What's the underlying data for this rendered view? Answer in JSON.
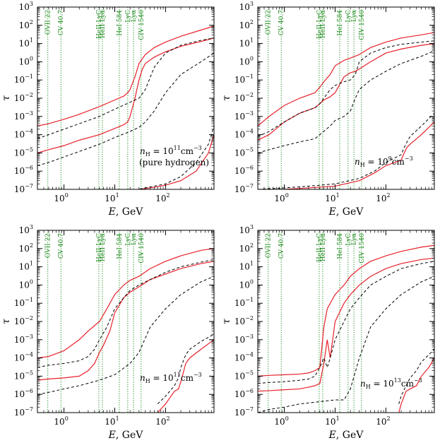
{
  "chart_data": [
    {
      "type": "line",
      "panel": "top-left",
      "xlabel_parts": [
        "E",
        ", GeV"
      ],
      "ylabel": "τ",
      "xscale": "log",
      "yscale": "log",
      "xlim": [
        0.3,
        900
      ],
      "ylim": [
        1e-07,
        1000
      ],
      "annotation_lines": [
        "nH = 10^11 cm^-3",
        "(pure hydrogen)"
      ],
      "annotation_parts": {
        "n": "n",
        "sub": "H",
        "eq": " = 10",
        "exp": "11",
        "unit": "cm",
        "unitexp": "−3",
        "line2": "(pure hydrogen)"
      },
      "series": [
        {
          "style": "solid-red",
          "x": [
            0.3,
            0.5,
            1,
            2,
            5,
            10,
            15,
            18,
            20,
            25,
            30,
            40,
            60,
            100,
            200,
            500,
            900
          ],
          "y": [
            0.0003,
            0.0004,
            0.0007,
            0.0013,
            0.0035,
            0.008,
            0.013,
            0.02,
            0.03,
            0.15,
            0.8,
            2.5,
            6,
            12,
            25,
            55,
            90
          ]
        },
        {
          "style": "solid-red",
          "x": [
            0.3,
            0.5,
            1,
            2,
            5,
            10,
            15,
            18,
            20,
            25,
            30,
            35,
            40,
            60,
            100,
            200,
            500,
            900
          ],
          "y": [
            1e-05,
            1.5e-05,
            2.5e-05,
            5e-05,
            0.0001,
            0.00022,
            0.00035,
            0.0005,
            0.001,
            0.01,
            0.1,
            0.4,
            0.8,
            1.8,
            3.5,
            7,
            13,
            20
          ]
        },
        {
          "style": "dashed-black",
          "x": [
            0.3,
            0.5,
            1,
            2,
            5,
            10,
            20,
            30,
            40,
            60,
            100,
            200,
            500,
            900
          ],
          "y": [
            6e-05,
            0.0001,
            0.0002,
            0.0004,
            0.001,
            0.0025,
            0.006,
            0.01,
            0.03,
            0.5,
            3,
            8,
            15,
            20
          ]
        },
        {
          "style": "dashed-black",
          "x": [
            0.3,
            0.5,
            1,
            2,
            5,
            10,
            20,
            30,
            40,
            60,
            100,
            200,
            500,
            900
          ],
          "y": [
            2e-06,
            3e-06,
            6e-06,
            1.2e-05,
            3e-05,
            7e-05,
            0.00015,
            0.00025,
            0.0005,
            0.002,
            0.02,
            0.2,
            1,
            3
          ]
        },
        {
          "style": "solid-red",
          "x": [
            15,
            30,
            60,
            100,
            200,
            400,
            700,
            900
          ],
          "y": [
            8e-08,
            1e-07,
            1.3e-07,
            1.7e-07,
            3e-07,
            1e-06,
            1e-05,
            0.0001
          ]
        },
        {
          "style": "dashed-black",
          "x": [
            20,
            40,
            100,
            200,
            400,
            700,
            900
          ],
          "y": [
            8e-08,
            1.2e-07,
            2e-07,
            5e-07,
            3e-06,
            3e-05,
            0.0003
          ]
        }
      ]
    },
    {
      "type": "line",
      "panel": "top-right",
      "xlabel_parts": [
        "E",
        ", GeV"
      ],
      "ylabel": "τ",
      "xscale": "log",
      "yscale": "log",
      "xlim": [
        0.3,
        900
      ],
      "ylim": [
        1e-07,
        1000
      ],
      "annotation_parts": {
        "n": "n",
        "sub": "H",
        "eq": " = 10",
        "exp": "9",
        "unit": "cm",
        "unitexp": "−3",
        "line2": ""
      },
      "series": [
        {
          "style": "solid-red",
          "x": [
            0.3,
            0.5,
            1,
            2,
            4,
            5,
            6,
            8,
            10,
            15,
            20,
            30,
            50,
            100,
            200,
            500,
            900
          ],
          "y": [
            0.0003,
            0.001,
            0.004,
            0.01,
            0.02,
            0.04,
            0.08,
            0.2,
            0.6,
            1.2,
            1.6,
            2.5,
            6,
            12,
            20,
            30,
            40
          ]
        },
        {
          "style": "solid-red",
          "x": [
            0.3,
            0.5,
            1,
            2,
            4,
            5,
            6,
            8,
            10,
            12,
            15,
            20,
            25,
            30,
            50,
            100,
            200,
            500,
            900
          ],
          "y": [
            5e-05,
            0.0001,
            0.0005,
            0.0015,
            0.003,
            0.005,
            0.008,
            0.012,
            0.02,
            0.05,
            0.15,
            0.25,
            0.3,
            0.4,
            1,
            3,
            5,
            8,
            10
          ]
        },
        {
          "style": "dashed-black",
          "x": [
            0.3,
            0.5,
            1,
            2,
            4,
            5,
            6,
            8,
            10,
            15,
            20,
            25,
            30,
            50,
            100,
            200,
            500,
            900
          ],
          "y": [
            8e-05,
            0.00015,
            0.0005,
            0.0015,
            0.003,
            0.005,
            0.01,
            0.03,
            0.05,
            0.08,
            0.1,
            0.2,
            1,
            3,
            6,
            9,
            12,
            14
          ]
        },
        {
          "style": "dashed-black",
          "x": [
            0.3,
            0.5,
            1,
            2,
            4,
            5,
            8,
            10,
            15,
            20,
            25,
            30,
            50,
            100,
            200,
            500,
            900
          ],
          "y": [
            1e-05,
            1.5e-05,
            2.5e-05,
            4e-05,
            6e-05,
            0.0001,
            0.0003,
            0.0006,
            0.001,
            0.002,
            0.01,
            0.03,
            0.1,
            0.3,
            0.8,
            2,
            4
          ]
        },
        {
          "style": "solid-red",
          "x": [
            0.3,
            1,
            3,
            10,
            30,
            60,
            100,
            200,
            230,
            260,
            300,
            500,
            900
          ],
          "y": [
            9e-08,
            1e-07,
            1.2e-07,
            1.5e-07,
            3e-07,
            8e-07,
            2e-06,
            4e-06,
            1e-05,
            2e-05,
            3e-05,
            0.0001,
            0.0005
          ]
        },
        {
          "style": "dashed-black",
          "x": [
            0.3,
            1,
            3,
            10,
            30,
            60,
            100,
            200,
            230,
            260,
            300,
            500,
            900
          ],
          "y": [
            1e-07,
            1.2e-07,
            1.5e-07,
            2e-07,
            4e-07,
            1e-06,
            3e-06,
            8e-06,
            2e-05,
            4e-05,
            8e-05,
            0.0003,
            0.0015
          ]
        }
      ]
    },
    {
      "type": "line",
      "panel": "bottom-left",
      "xlabel_parts": [
        "E",
        ", GeV"
      ],
      "ylabel": "τ",
      "xscale": "log",
      "yscale": "log",
      "xlim": [
        0.3,
        900
      ],
      "ylim": [
        1e-07,
        1000
      ],
      "annotation_parts": {
        "n": "n",
        "sub": "H",
        "eq": " = 10",
        "exp": "11",
        "unit": "cm",
        "unitexp": "−3",
        "line2": ""
      },
      "series": [
        {
          "style": "solid-red",
          "x": [
            0.3,
            0.5,
            1,
            2,
            3,
            5,
            7,
            10,
            15,
            20,
            30,
            50,
            100,
            200,
            500,
            900
          ],
          "y": [
            0.0001,
            0.00012,
            0.00025,
            0.001,
            0.003,
            0.01,
            0.05,
            0.3,
            1,
            1.8,
            3,
            8,
            20,
            40,
            80,
            100
          ]
        },
        {
          "style": "solid-red",
          "x": [
            0.3,
            0.5,
            1,
            2,
            3,
            4,
            5,
            6,
            8,
            10,
            15,
            20,
            30,
            50,
            100,
            200,
            500,
            900
          ],
          "y": [
            6e-06,
            7e-06,
            8e-06,
            1e-05,
            2e-05,
            5e-05,
            0.0002,
            0.0005,
            0.003,
            0.03,
            0.2,
            0.4,
            0.8,
            2,
            4,
            8,
            15,
            20
          ]
        },
        {
          "style": "dashed-black",
          "x": [
            0.3,
            0.5,
            1,
            2,
            3,
            4,
            5,
            7,
            10,
            15,
            20,
            30,
            50,
            100,
            200,
            500,
            900
          ],
          "y": [
            3e-05,
            4e-05,
            5e-05,
            7e-05,
            0.00012,
            0.0003,
            0.001,
            0.005,
            0.05,
            0.2,
            0.5,
            1,
            2,
            5,
            10,
            18,
            25
          ]
        },
        {
          "style": "dashed-black",
          "x": [
            0.3,
            0.5,
            1,
            2,
            5,
            10,
            20,
            30,
            50,
            100,
            200,
            500,
            900
          ],
          "y": [
            1e-06,
            1.3e-06,
            2e-06,
            3e-06,
            6e-06,
            1.2e-05,
            5e-05,
            0.0002,
            0.005,
            0.05,
            0.3,
            1.5,
            3
          ]
        },
        {
          "style": "solid-red",
          "x": [
            70,
            100,
            150,
            180,
            200,
            250,
            300,
            500,
            900
          ],
          "y": [
            1e-07,
            3e-07,
            1.5e-06,
            2e-06,
            5e-06,
            5e-05,
            0.0001,
            0.0003,
            0.001
          ]
        },
        {
          "style": "dashed-black",
          "x": [
            70,
            100,
            150,
            180,
            200,
            250,
            300,
            500,
            900
          ],
          "y": [
            3e-07,
            8e-07,
            3e-06,
            8e-06,
            3e-05,
            0.00015,
            0.0003,
            0.0008,
            0.002
          ]
        }
      ]
    },
    {
      "type": "line",
      "panel": "bottom-right",
      "xlabel_parts": [
        "E",
        ", GeV"
      ],
      "ylabel": "τ",
      "xscale": "log",
      "yscale": "log",
      "xlim": [
        0.3,
        900
      ],
      "ylim": [
        1e-07,
        1000
      ],
      "annotation_parts": {
        "n": "n",
        "sub": "H",
        "eq": " = 10",
        "exp": "13",
        "unit": "cm",
        "unitexp": "−3",
        "line2": ""
      },
      "series": [
        {
          "style": "solid-red",
          "x": [
            0.3,
            0.5,
            1,
            2,
            3,
            4,
            5,
            6,
            7,
            10,
            15,
            20,
            30,
            50,
            100,
            200,
            500,
            900
          ],
          "y": [
            1e-05,
            1.1e-05,
            1.2e-05,
            1.3e-05,
            1.5e-05,
            2e-05,
            3e-05,
            0.005,
            0.05,
            0.3,
            1,
            3,
            8,
            20,
            40,
            70,
            120,
            150
          ]
        },
        {
          "style": "solid-red",
          "x": [
            0.3,
            0.5,
            1,
            2,
            3,
            4,
            5,
            6,
            7,
            8,
            10,
            15,
            20,
            30,
            50,
            100,
            200,
            500,
            900
          ],
          "y": [
            1.5e-06,
            1.6e-06,
            1.8e-06,
            2e-06,
            2.5e-06,
            3e-06,
            4e-06,
            5e-05,
            0.001,
            0.0001,
            0.01,
            0.1,
            0.3,
            1,
            3,
            8,
            15,
            25,
            30
          ]
        },
        {
          "style": "dashed-black",
          "x": [
            0.3,
            0.5,
            1,
            2,
            3,
            4,
            5,
            6,
            7,
            8,
            10,
            15,
            20,
            30,
            50,
            100,
            200,
            500,
            900
          ],
          "y": [
            4e-06,
            4.5e-06,
            5e-06,
            6e-06,
            7e-06,
            1e-05,
            3e-05,
            0.0001,
            3e-05,
            0.0001,
            0.001,
            0.01,
            0.05,
            0.2,
            1,
            3,
            8,
            15,
            20
          ]
        },
        {
          "style": "dashed-black",
          "x": [
            0.3,
            0.5,
            1,
            2,
            5,
            10,
            15,
            20,
            30,
            50,
            100,
            200,
            500,
            900
          ],
          "y": [
            1e-07,
            1.5e-07,
            2e-07,
            3e-07,
            4e-07,
            5e-07,
            5e-07,
            2e-06,
            0.0001,
            0.005,
            0.05,
            0.3,
            1.5,
            3
          ]
        },
        {
          "style": "solid-red",
          "x": [
            180,
            200,
            250,
            300,
            400,
            500,
            700,
            900
          ],
          "y": [
            1e-07,
            3e-07,
            1.5e-06,
            2e-06,
            3e-06,
            1e-05,
            3e-05,
            0.0001
          ]
        },
        {
          "style": "dashed-black",
          "x": [
            180,
            200,
            250,
            300,
            400,
            500,
            700,
            900
          ],
          "y": [
            3e-07,
            8e-07,
            3e-06,
            8e-06,
            2e-05,
            6e-05,
            0.00015,
            0.0003
          ]
        }
      ]
    }
  ],
  "spectral_lines": [
    {
      "label": "OVII 22",
      "x": 0.48
    },
    {
      "label": "CV 40.7",
      "x": 0.87
    },
    {
      "label": "HeII LyC",
      "x": 4.85
    },
    {
      "label": "HeII Lyα",
      "x": 5.7
    },
    {
      "label": "HeI 584",
      "x": 12.3
    },
    {
      "label": "LyC",
      "x": 18.0
    },
    {
      "label": "Lyα",
      "x": 23.5
    },
    {
      "label": "CIV 1540",
      "x": 33.0
    }
  ],
  "x_ticks": [
    {
      "v": 1,
      "label": "10",
      "exp": "0"
    },
    {
      "v": 10,
      "label": "10",
      "exp": "1"
    },
    {
      "v": 100,
      "label": "10",
      "exp": "2"
    }
  ],
  "y_ticks": [
    {
      "v": 1e-07,
      "exp": "−7"
    },
    {
      "v": 1e-06,
      "exp": "−6"
    },
    {
      "v": 1e-05,
      "exp": "−5"
    },
    {
      "v": 0.0001,
      "exp": "−4"
    },
    {
      "v": 0.001,
      "exp": "−3"
    },
    {
      "v": 0.01,
      "exp": "−2"
    },
    {
      "v": 0.1,
      "exp": "−1"
    },
    {
      "v": 1,
      "exp": "0"
    },
    {
      "v": 10,
      "exp": "1"
    },
    {
      "v": 100,
      "exp": "2"
    },
    {
      "v": 1000,
      "exp": "3"
    }
  ],
  "y_tick_base": "10",
  "colors": {
    "red": "#e8202a",
    "dashed": "#000000",
    "green": "#1a8a1a"
  }
}
